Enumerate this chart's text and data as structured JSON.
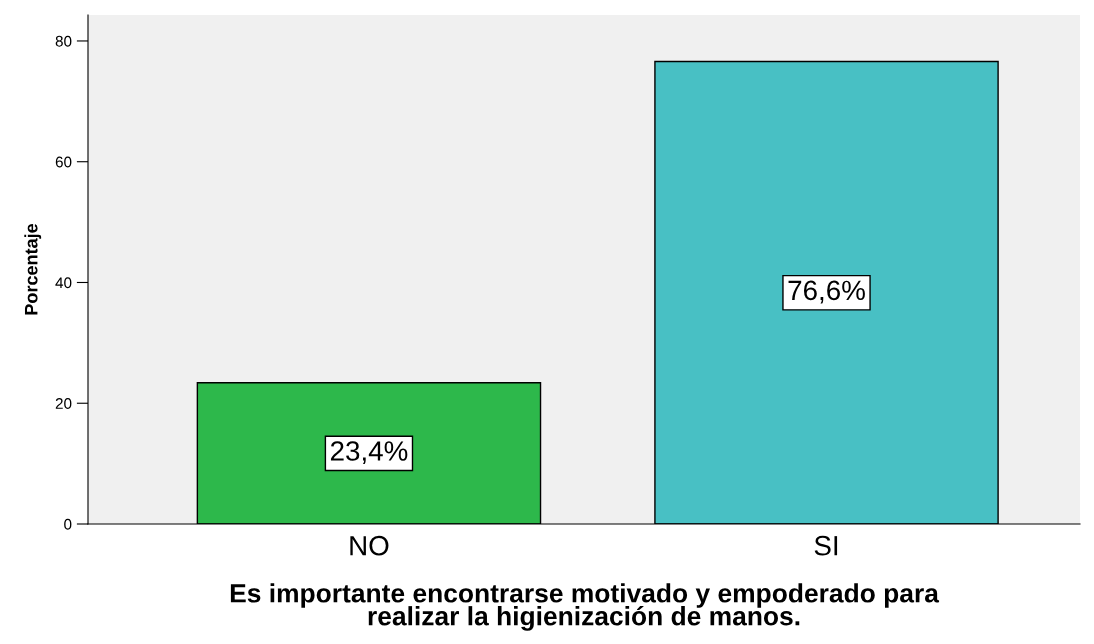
{
  "chart_data": {
    "type": "bar",
    "categories": [
      "NO",
      "SI"
    ],
    "values": [
      23.4,
      76.6
    ],
    "colors": [
      "#2db84b",
      "#48c0c4"
    ],
    "value_labels": [
      "23,4%",
      "76,6%"
    ],
    "xlabel": "Es importante encontrarse motivado y empoderado para\nrealizar la higienización de manos.",
    "ylabel": "Porcentaje",
    "ylim": [
      0,
      84.3
    ],
    "yticks": [
      0,
      20,
      40,
      60,
      80
    ],
    "grid": false,
    "legend": false
  }
}
